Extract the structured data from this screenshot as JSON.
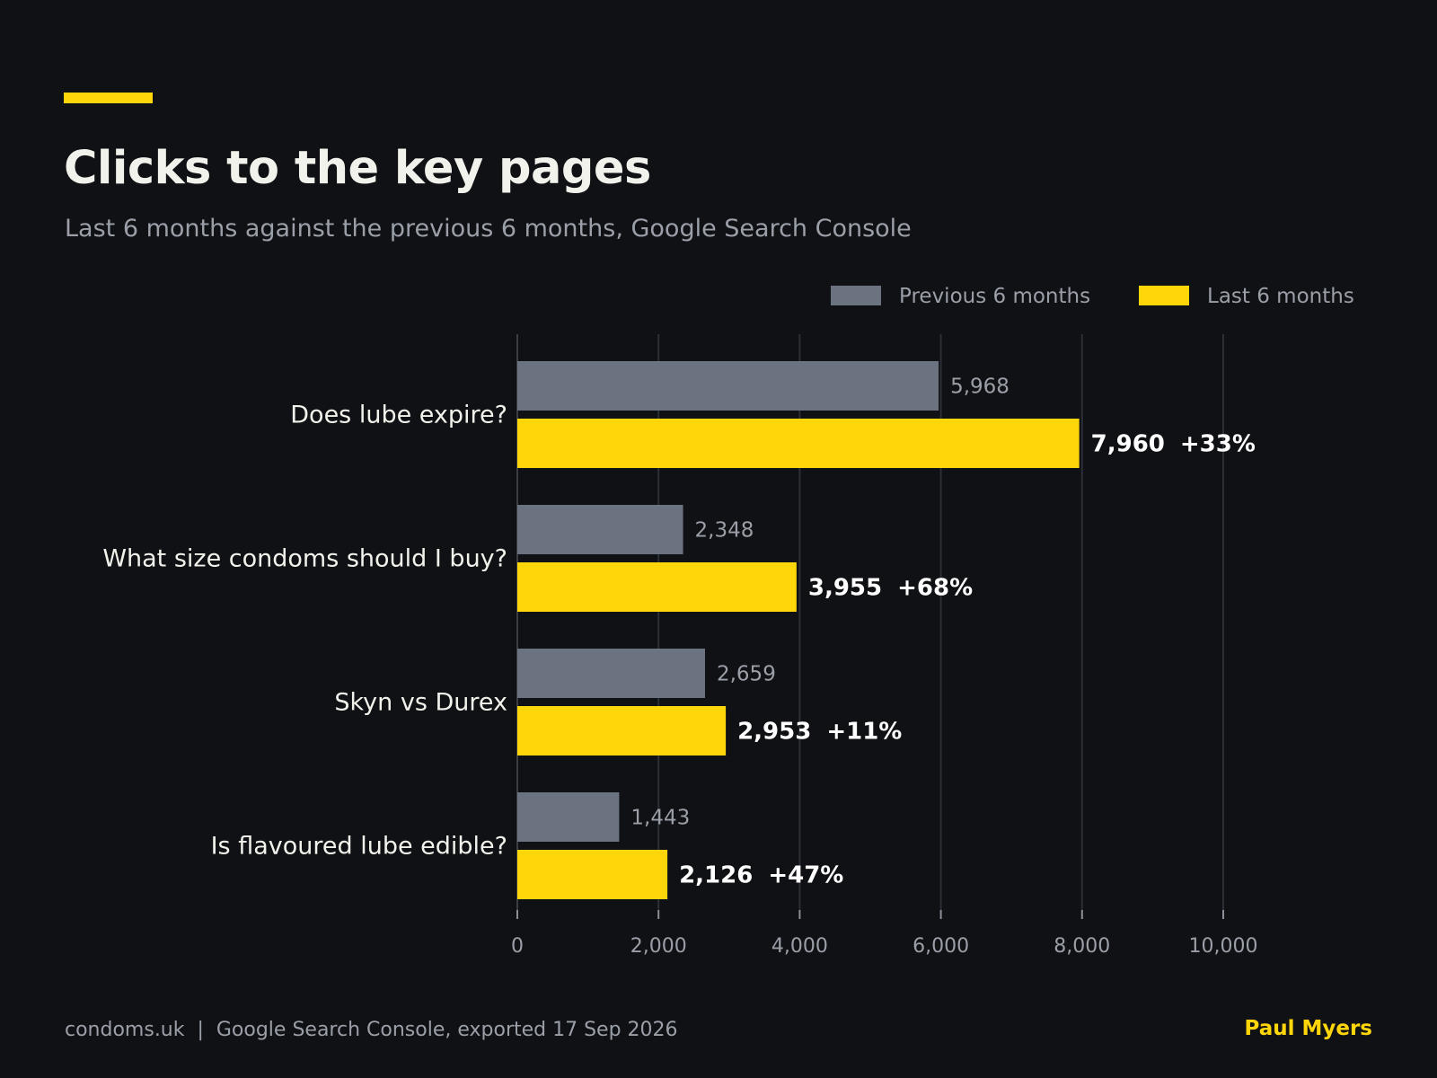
{
  "header": {
    "title": "Clicks to the key pages",
    "subtitle": "Last 6 months against the previous 6 months, Google Search Console"
  },
  "footer": {
    "source": "condoms.uk  |  Google Search Console, exported 17 Sep 2026",
    "author": "Paul Myers"
  },
  "colors": {
    "background": "#101114",
    "accent": "#FFD60A",
    "previous": "#6B7280",
    "gridline": "#2C2F36",
    "muted_text": "#9A9FA8",
    "label_text": "#F2F2EC"
  },
  "chart_data": {
    "type": "bar",
    "orientation": "horizontal",
    "categories": [
      "Does lube expire?",
      "What size condoms should I buy?",
      "Skyn vs Durex",
      "Is flavoured lube edible?"
    ],
    "series": [
      {
        "name": "Previous 6 months",
        "values": [
          5968,
          2348,
          2659,
          1443
        ],
        "labels": [
          "5,968",
          "2,348",
          "2,659",
          "1,443"
        ]
      },
      {
        "name": "Last 6 months",
        "values": [
          7960,
          3955,
          2953,
          2126
        ],
        "labels": [
          "7,960",
          "3,955",
          "2,953",
          "2,126"
        ]
      }
    ],
    "change_labels": [
      "+33%",
      "+68%",
      "+11%",
      "+47%"
    ],
    "xlim": [
      0,
      10000
    ],
    "xticks": [
      0,
      2000,
      4000,
      6000,
      8000,
      10000
    ],
    "xtick_labels": [
      "0",
      "2,000",
      "4,000",
      "6,000",
      "8,000",
      "10,000"
    ],
    "grid": true,
    "legend_position": "top-right"
  }
}
